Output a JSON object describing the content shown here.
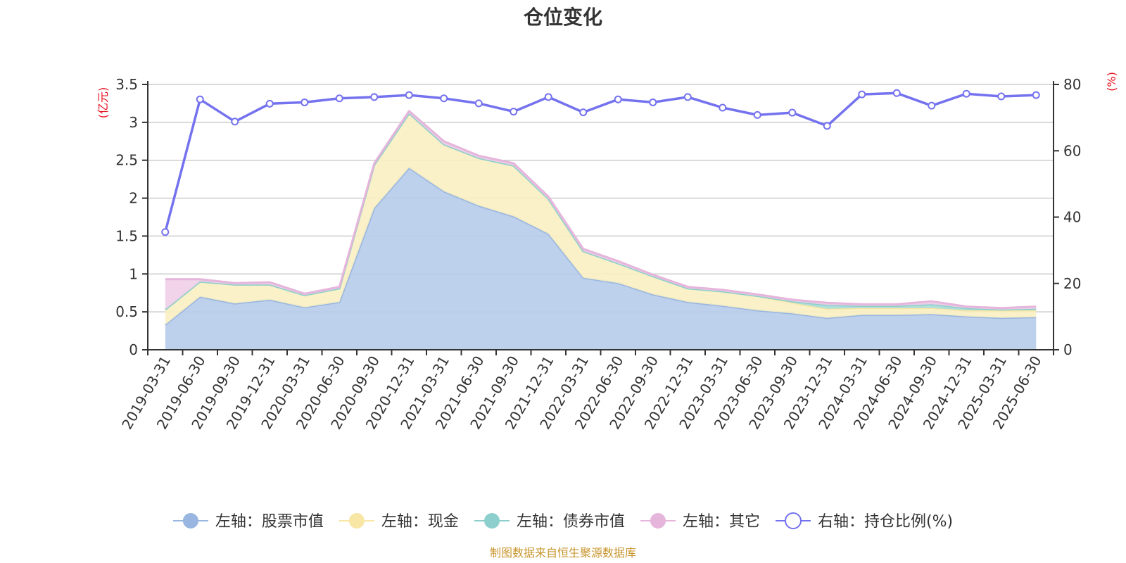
{
  "chart_data": {
    "type": "area",
    "title": "仓位变化",
    "left_axis_unit": "(亿元)",
    "right_axis_unit": "(%)",
    "categories": [
      "2019-03-31",
      "2019-06-30",
      "2019-09-30",
      "2019-12-31",
      "2020-03-31",
      "2020-06-30",
      "2020-09-30",
      "2020-12-31",
      "2021-03-31",
      "2021-06-30",
      "2021-09-30",
      "2021-12-31",
      "2022-03-31",
      "2022-06-30",
      "2022-09-30",
      "2022-12-31",
      "2023-03-31",
      "2023-06-30",
      "2023-09-30",
      "2023-12-31",
      "2024-03-31",
      "2024-06-30",
      "2024-09-30",
      "2024-12-31",
      "2025-03-31",
      "2025-06-30"
    ],
    "ylim_left": [
      0,
      3.5
    ],
    "yticks_left": [
      "0",
      "0.5",
      "1",
      "1.5",
      "2",
      "2.5",
      "3",
      "3.5"
    ],
    "ylim_right": [
      0,
      80
    ],
    "yticks_right": [
      "0",
      "20",
      "40",
      "60",
      "80"
    ],
    "stack_series": [
      {
        "name": "左轴：股票市值",
        "color": "#98b6e0",
        "fill": "#b6cbea",
        "values": [
          0.33,
          0.7,
          0.61,
          0.66,
          0.56,
          0.63,
          1.87,
          2.4,
          2.09,
          1.9,
          1.76,
          1.53,
          0.95,
          0.88,
          0.73,
          0.63,
          0.58,
          0.52,
          0.48,
          0.42,
          0.46,
          0.46,
          0.47,
          0.44,
          0.42,
          0.43
        ]
      },
      {
        "name": "左轴：现金",
        "color": "#f7e6a4",
        "fill": "#faefc2",
        "values": [
          0.2,
          0.2,
          0.25,
          0.2,
          0.16,
          0.18,
          0.57,
          0.72,
          0.62,
          0.63,
          0.67,
          0.46,
          0.35,
          0.26,
          0.24,
          0.18,
          0.19,
          0.19,
          0.14,
          0.12,
          0.09,
          0.09,
          0.08,
          0.08,
          0.1,
          0.09
        ]
      },
      {
        "name": "左轴：债券市值",
        "color": "#8ccfcc",
        "fill": "#a9dcda",
        "values": [
          0,
          0,
          0,
          0,
          0,
          0,
          0,
          0,
          0,
          0,
          0,
          0,
          0,
          0,
          0,
          0,
          0,
          0,
          0.02,
          0.05,
          0.03,
          0.03,
          0.05,
          0.03,
          0.01,
          0.02
        ]
      },
      {
        "name": "左轴：其它",
        "color": "#e6b5db",
        "fill": "#efcfe8",
        "values": [
          0.4,
          0.03,
          0.02,
          0.03,
          0.02,
          0.02,
          0.02,
          0.03,
          0.04,
          0.03,
          0.03,
          0.03,
          0.03,
          0.03,
          0.02,
          0.02,
          0.02,
          0.02,
          0.02,
          0.03,
          0.02,
          0.02,
          0.04,
          0.02,
          0.02,
          0.03
        ]
      }
    ],
    "line_series": {
      "name": "右轴：持仓比例(%)",
      "color": "#7472ee",
      "values": [
        35.5,
        75.5,
        68.8,
        74.2,
        74.6,
        75.8,
        76.2,
        76.8,
        75.8,
        74.3,
        71.8,
        76.2,
        71.6,
        75.5,
        74.6,
        76.2,
        73.0,
        70.8,
        71.5,
        67.5,
        77.0,
        77.4,
        73.6,
        77.2,
        76.4,
        76.8
      ]
    },
    "legend_position": "bottom"
  },
  "footer": "制图数据来自恒生聚源数据库",
  "colors": {
    "left_unit": "#e8101e",
    "right_unit": "#e8101e",
    "footer": "#c8962e",
    "axis": "#333333",
    "grid": "#cccccc"
  }
}
